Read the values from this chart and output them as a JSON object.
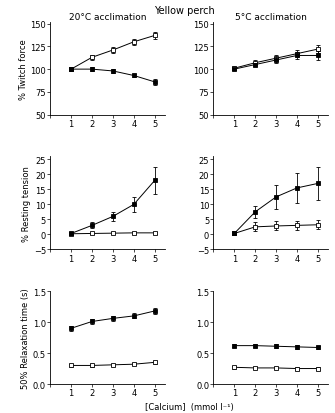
{
  "title": "Yellow perch",
  "col_titles": [
    "20°C acclimation",
    "5°C acclimation"
  ],
  "xlabel": "[Calcium]  (mmol l⁻¹)",
  "ylabels": [
    "% Twitch force",
    "% Resting tension",
    "50% Relaxation time (s)"
  ],
  "x": [
    1,
    2,
    3,
    4,
    5
  ],
  "panel_data": {
    "top_left": {
      "open": {
        "y": [
          100,
          113,
          121,
          130,
          137
        ],
        "yerr": [
          2,
          3,
          3,
          3,
          4
        ]
      },
      "filled": {
        "y": [
          100,
          100,
          98,
          93,
          86
        ],
        "yerr": [
          1,
          2,
          2,
          2,
          3
        ]
      },
      "ylim": [
        50,
        152
      ],
      "yticks": [
        50,
        75,
        100,
        125,
        150
      ]
    },
    "top_right": {
      "open": {
        "y": [
          101,
          107,
          112,
          117,
          122
        ],
        "yerr": [
          2,
          3,
          3,
          4,
          4
        ]
      },
      "filled": {
        "y": [
          100,
          105,
          110,
          115,
          115
        ],
        "yerr": [
          1,
          2,
          3,
          4,
          5
        ]
      },
      "ylim": [
        50,
        152
      ],
      "yticks": [
        50,
        75,
        100,
        125,
        150
      ]
    },
    "mid_left": {
      "open": {
        "y": [
          0.2,
          0.3,
          0.4,
          0.5,
          0.5
        ],
        "yerr": [
          0.3,
          0.3,
          0.3,
          0.3,
          0.3
        ]
      },
      "filled": {
        "y": [
          0.3,
          3.0,
          6.0,
          10.0,
          18.0
        ],
        "yerr": [
          0.5,
          1.0,
          1.5,
          2.5,
          4.5
        ]
      },
      "ylim": [
        -5,
        26
      ],
      "yticks": [
        -5,
        0,
        5,
        10,
        15,
        20,
        25
      ]
    },
    "mid_right": {
      "open": {
        "y": [
          0.3,
          2.5,
          2.8,
          3.0,
          3.2
        ],
        "yerr": [
          0.3,
          1.5,
          1.5,
          1.5,
          1.5
        ]
      },
      "filled": {
        "y": [
          0.3,
          7.5,
          12.5,
          15.5,
          17.0
        ],
        "yerr": [
          0.5,
          2.0,
          4.0,
          5.0,
          5.5
        ]
      },
      "ylim": [
        -5,
        26
      ],
      "yticks": [
        -5,
        0,
        5,
        10,
        15,
        20,
        25
      ]
    },
    "bot_left": {
      "open": {
        "y": [
          0.3,
          0.3,
          0.31,
          0.32,
          0.35
        ],
        "yerr": [
          0.02,
          0.02,
          0.02,
          0.02,
          0.02
        ]
      },
      "filled": {
        "y": [
          0.9,
          1.01,
          1.06,
          1.1,
          1.18
        ],
        "yerr": [
          0.04,
          0.04,
          0.04,
          0.04,
          0.05
        ]
      },
      "ylim": [
        0.0,
        1.5
      ],
      "yticks": [
        0.0,
        0.5,
        1.0,
        1.5
      ]
    },
    "bot_right": {
      "open": {
        "y": [
          0.27,
          0.26,
          0.26,
          0.25,
          0.25
        ],
        "yerr": [
          0.02,
          0.02,
          0.02,
          0.02,
          0.02
        ]
      },
      "filled": {
        "y": [
          0.62,
          0.62,
          0.61,
          0.6,
          0.59
        ],
        "yerr": [
          0.03,
          0.03,
          0.03,
          0.03,
          0.03
        ]
      },
      "ylim": [
        0.0,
        1.5
      ],
      "yticks": [
        0.0,
        0.5,
        1.0,
        1.5
      ]
    }
  },
  "open_marker": "s",
  "filled_marker": "s",
  "line_color": "black",
  "open_facecolor": "white",
  "filled_facecolor": "black",
  "markersize": 3.0,
  "capsize": 1.5,
  "elinewidth": 0.6,
  "linewidth": 0.7,
  "title_fontsize": 7,
  "subtitle_fontsize": 6.5,
  "tick_labelsize": 6,
  "ylabel_fontsize": 6,
  "xlabel_fontsize": 6
}
